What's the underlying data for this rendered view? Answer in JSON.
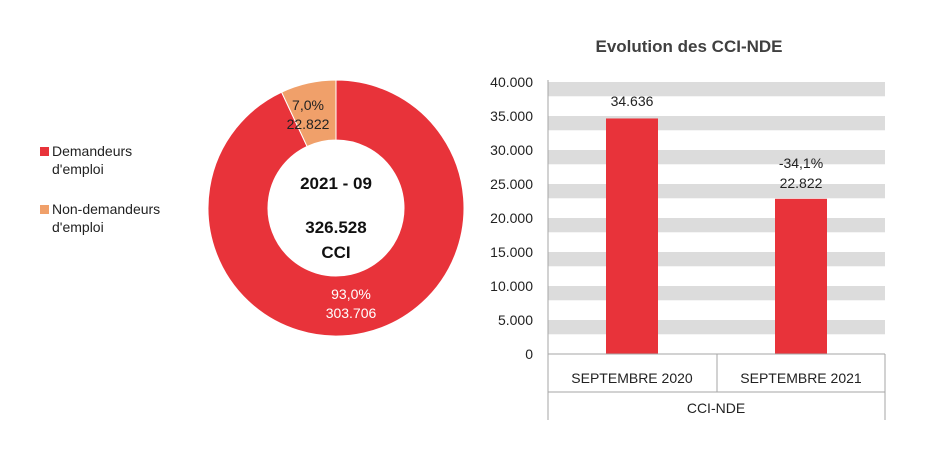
{
  "colors": {
    "red": "#E8333A",
    "orange": "#F0A06A",
    "grid_band": "#DCDCDC",
    "axis": "#A6A6A6"
  },
  "legend": [
    {
      "label": "Demandeurs d'emploi",
      "color": "#E8333A"
    },
    {
      "label": "Non-demandeurs d'emploi",
      "color": "#F0A06A"
    }
  ],
  "chart_data": [
    {
      "type": "pie",
      "center_label": {
        "period": "2021 - 09",
        "total": "326.528",
        "unit": "CCI"
      },
      "slices": [
        {
          "name": "Demandeurs d'emploi",
          "value": 303706,
          "percent_label": "93,0%",
          "value_label": "303.706",
          "color": "#E8333A"
        },
        {
          "name": "Non-demandeurs d'emploi",
          "value": 22822,
          "percent_label": "7,0%",
          "value_label": "22.822",
          "color": "#F0A06A"
        }
      ]
    },
    {
      "type": "bar",
      "title": "Evolution des CCI-NDE",
      "categories": [
        "SEPTEMBRE 2020",
        "SEPTEMBRE 2021"
      ],
      "group_label": "CCI-NDE",
      "values": [
        34636,
        22822
      ],
      "data_labels": [
        {
          "change": "",
          "value": "34.636"
        },
        {
          "change": "-34,1%",
          "value": "22.822"
        }
      ],
      "y_ticks": [
        "0",
        "5.000",
        "10.000",
        "15.000",
        "20.000",
        "25.000",
        "30.000",
        "35.000",
        "40.000"
      ],
      "ylim": [
        0,
        40000
      ],
      "y_step": 5000,
      "color": "#E8333A"
    }
  ]
}
